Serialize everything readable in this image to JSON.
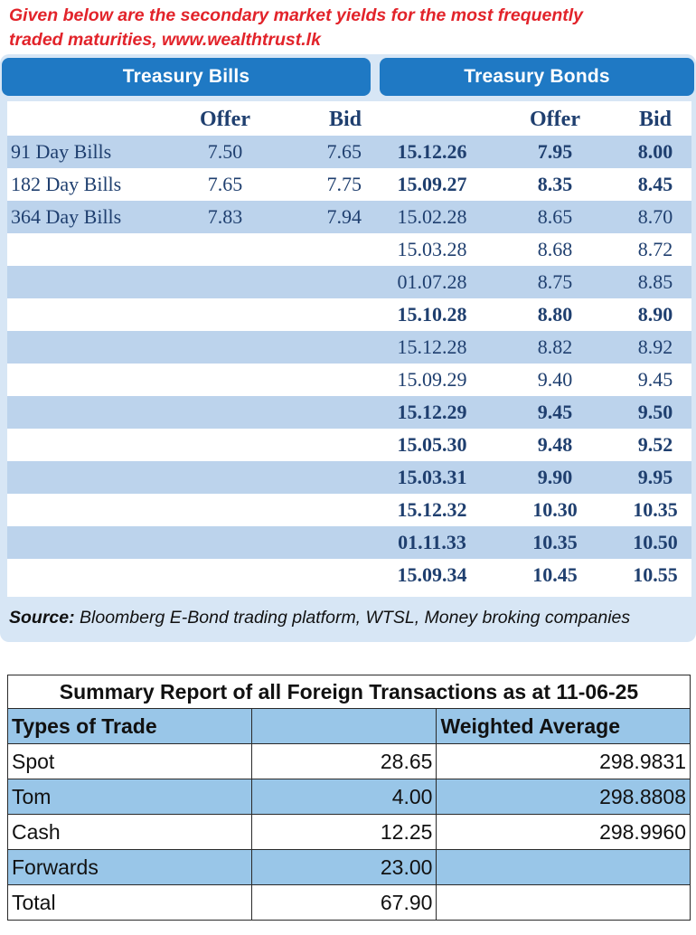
{
  "caption": {
    "line1": "Given below are the secondary market yields for the most frequently",
    "line2": "traded maturities, www.wealthtrust.lk"
  },
  "headers": {
    "treasury_bills": "Treasury Bills",
    "treasury_bonds": "Treasury Bonds"
  },
  "column_labels": {
    "bills_offer": "Offer",
    "bills_bid": "Bid",
    "bonds_offer": "Offer",
    "bonds_bid": "Bid"
  },
  "bills": [
    {
      "name": "91 Day Bills",
      "offer": "7.50",
      "bid": "7.65"
    },
    {
      "name": "182 Day Bills",
      "offer": "7.65",
      "bid": "7.75"
    },
    {
      "name": "364 Day Bills",
      "offer": "7.83",
      "bid": "7.94"
    }
  ],
  "bonds": [
    {
      "maturity": "15.12.26",
      "offer": "7.95",
      "bid": "8.00",
      "bold": true
    },
    {
      "maturity": "15.09.27",
      "offer": "8.35",
      "bid": "8.45",
      "bold": true
    },
    {
      "maturity": "15.02.28",
      "offer": "8.65",
      "bid": "8.70",
      "bold": false
    },
    {
      "maturity": "15.03.28",
      "offer": "8.68",
      "bid": "8.72",
      "bold": false
    },
    {
      "maturity": "01.07.28",
      "offer": "8.75",
      "bid": "8.85",
      "bold": false
    },
    {
      "maturity": "15.10.28",
      "offer": "8.80",
      "bid": "8.90",
      "bold": true
    },
    {
      "maturity": "15.12.28",
      "offer": "8.82",
      "bid": "8.92",
      "bold": false
    },
    {
      "maturity": "15.09.29",
      "offer": "9.40",
      "bid": "9.45",
      "bold": false
    },
    {
      "maturity": "15.12.29",
      "offer": "9.45",
      "bid": "9.50",
      "bold": true
    },
    {
      "maturity": "15.05.30",
      "offer": "9.48",
      "bid": "9.52",
      "bold": true
    },
    {
      "maturity": "15.03.31",
      "offer": "9.90",
      "bid": "9.95",
      "bold": true
    },
    {
      "maturity": "15.12.32",
      "offer": "10.30",
      "bid": "10.35",
      "bold": true
    },
    {
      "maturity": "01.11.33",
      "offer": "10.35",
      "bid": "10.50",
      "bold": true
    },
    {
      "maturity": "15.09.34",
      "offer": "10.45",
      "bid": "10.55",
      "bold": true
    }
  ],
  "source": {
    "label": "Source:",
    "text": " Bloomberg E-Bond trading platform, WTSL, Money broking companies"
  },
  "summary": {
    "title": "Summary Report of all Foreign Transactions as at 11-06-25",
    "header": {
      "type": "Types of Trade",
      "amount": "",
      "wavg": "Weighted Average"
    },
    "rows": [
      {
        "type": "Spot",
        "amount": "28.65",
        "wavg": "298.9831"
      },
      {
        "type": "Tom",
        "amount": "4.00",
        "wavg": "298.8808"
      },
      {
        "type": "Cash",
        "amount": "12.25",
        "wavg": "298.9960"
      },
      {
        "type": "Forwards",
        "amount": "23.00",
        "wavg": ""
      },
      {
        "type": "Total",
        "amount": "67.90",
        "wavg": ""
      }
    ]
  },
  "colors": {
    "caption_red": "#e2232a",
    "header_blue": "#1f79c4",
    "row_shade": "#bcd3ec",
    "panel_bg": "#d7e6f5",
    "summary_blue": "#99c6e8",
    "text_navy": "#1f3f6f"
  }
}
